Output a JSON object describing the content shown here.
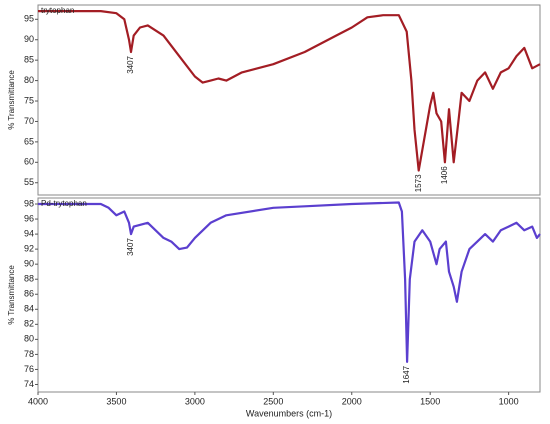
{
  "chart_data": [
    {
      "type": "line",
      "ylabel": "% Transmittance",
      "xlim": [
        4000,
        800
      ],
      "ylim": [
        52,
        98.5
      ],
      "yticks": [
        55,
        60,
        65,
        70,
        75,
        80,
        85,
        90,
        95
      ],
      "x": [
        4000,
        3600,
        3500,
        3450,
        3420,
        3407,
        3390,
        3350,
        3300,
        3200,
        3100,
        3000,
        2950,
        2900,
        2850,
        2800,
        2700,
        2500,
        2300,
        2100,
        2000,
        1900,
        1800,
        1700,
        1650,
        1620,
        1600,
        1573,
        1550,
        1500,
        1480,
        1460,
        1430,
        1406,
        1380,
        1350,
        1320,
        1300,
        1250,
        1200,
        1150,
        1100,
        1050,
        1000,
        950,
        900,
        850,
        800
      ],
      "series": [
        {
          "name": "trytophan",
          "color": "#a31d24",
          "values": [
            97,
            97,
            96.5,
            95,
            90,
            87,
            91,
            93,
            93.5,
            91,
            86,
            81,
            79.5,
            80,
            80.5,
            80,
            82,
            84,
            87,
            91,
            93,
            95.5,
            96,
            96,
            92,
            80,
            68,
            58,
            63,
            74,
            77,
            72,
            70,
            60,
            73,
            60,
            70,
            77,
            75,
            80,
            82,
            78,
            82,
            83,
            86,
            88,
            83,
            84
          ]
        }
      ],
      "annotations": [
        3407,
        1573,
        1406
      ]
    },
    {
      "type": "line",
      "ylabel": "% Transmittance",
      "xlabel": "Wavenumbers (cm-1)",
      "xlim": [
        4000,
        800
      ],
      "ylim": [
        73,
        98.8
      ],
      "xticks": [
        4000,
        3500,
        3000,
        2500,
        2000,
        1500,
        1000
      ],
      "yticks": [
        74,
        76,
        78,
        80,
        82,
        84,
        86,
        88,
        90,
        92,
        94,
        96,
        98
      ],
      "x": [
        4000,
        3600,
        3550,
        3500,
        3450,
        3420,
        3407,
        3390,
        3300,
        3200,
        3150,
        3100,
        3050,
        3000,
        2900,
        2800,
        2500,
        2300,
        2000,
        1700,
        1680,
        1660,
        1647,
        1630,
        1600,
        1550,
        1500,
        1460,
        1440,
        1400,
        1380,
        1350,
        1330,
        1300,
        1250,
        1200,
        1150,
        1100,
        1050,
        1000,
        950,
        900,
        850,
        820,
        800
      ],
      "series": [
        {
          "name": "Pd-trytophan",
          "color": "#5b3fcf",
          "values": [
            98,
            98,
            97.5,
            96.5,
            97,
            95.5,
            94,
            95,
            95.5,
            93.5,
            93,
            92,
            92.2,
            93.5,
            95.5,
            96.5,
            97.5,
            97.7,
            98,
            98.2,
            97,
            88,
            77,
            88,
            93,
            94.5,
            93,
            90,
            92,
            93,
            89,
            87,
            85,
            89,
            92,
            93,
            94,
            93,
            94.5,
            95,
            95.5,
            94.5,
            95,
            93.5,
            94
          ]
        }
      ],
      "annotations": [
        3407,
        1647
      ]
    }
  ]
}
